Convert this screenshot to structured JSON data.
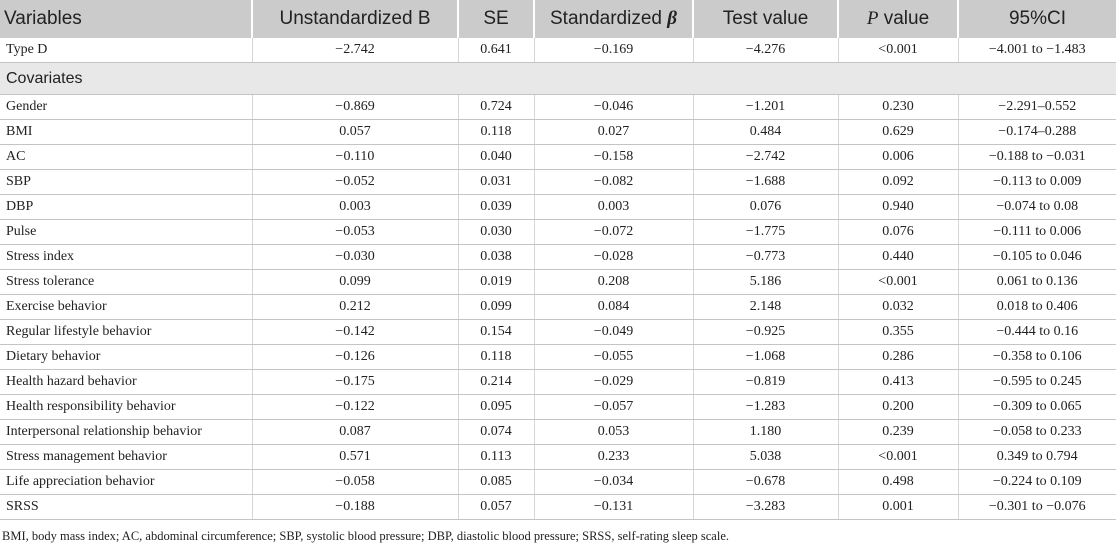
{
  "table": {
    "columns": [
      {
        "runs": [
          {
            "text": "Variables"
          }
        ]
      },
      {
        "runs": [
          {
            "text": "Unstandardized B"
          }
        ]
      },
      {
        "runs": [
          {
            "text": "SE"
          }
        ]
      },
      {
        "runs": [
          {
            "text": "Standardized "
          },
          {
            "text": "β",
            "italic": true,
            "bold": true
          }
        ]
      },
      {
        "runs": [
          {
            "text": "Test value"
          }
        ]
      },
      {
        "runs": [
          {
            "text": "P",
            "italic": true
          },
          {
            "text": " value"
          }
        ]
      },
      {
        "runs": [
          {
            "text": "95%CI"
          }
        ]
      }
    ],
    "rows": [
      [
        "Type D",
        "−2.742",
        "0.641",
        "−0.169",
        "−4.276",
        "<0.001",
        "−4.001 to −1.483"
      ]
    ],
    "section": "Covariates",
    "covariate_rows": [
      [
        "Gender",
        "−0.869",
        "0.724",
        "−0.046",
        "−1.201",
        "0.230",
        "−2.291–0.552"
      ],
      [
        "BMI",
        "0.057",
        "0.118",
        "0.027",
        "0.484",
        "0.629",
        "−0.174–0.288"
      ],
      [
        "AC",
        "−0.110",
        "0.040",
        "−0.158",
        "−2.742",
        "0.006",
        "−0.188 to −0.031"
      ],
      [
        "SBP",
        "−0.052",
        "0.031",
        "−0.082",
        "−1.688",
        "0.092",
        "−0.113 to 0.009"
      ],
      [
        "DBP",
        "0.003",
        "0.039",
        "0.003",
        "0.076",
        "0.940",
        "−0.074 to 0.08"
      ],
      [
        "Pulse",
        "−0.053",
        "0.030",
        "−0.072",
        "−1.775",
        "0.076",
        "−0.111 to 0.006"
      ],
      [
        "Stress index",
        "−0.030",
        "0.038",
        "−0.028",
        "−0.773",
        "0.440",
        "−0.105 to 0.046"
      ],
      [
        "Stress tolerance",
        "0.099",
        "0.019",
        "0.208",
        "5.186",
        "<0.001",
        "0.061 to 0.136"
      ],
      [
        "Exercise behavior",
        "0.212",
        "0.099",
        "0.084",
        "2.148",
        "0.032",
        "0.018 to 0.406"
      ],
      [
        "Regular lifestyle behavior",
        "−0.142",
        "0.154",
        "−0.049",
        "−0.925",
        "0.355",
        "−0.444 to 0.16"
      ],
      [
        "Dietary behavior",
        "−0.126",
        "0.118",
        "−0.055",
        "−1.068",
        "0.286",
        "−0.358 to 0.106"
      ],
      [
        "Health hazard behavior",
        "−0.175",
        "0.214",
        "−0.029",
        "−0.819",
        "0.413",
        "−0.595 to 0.245"
      ],
      [
        "Health responsibility behavior",
        "−0.122",
        "0.095",
        "−0.057",
        "−1.283",
        "0.200",
        "−0.309 to 0.065"
      ],
      [
        "Interpersonal relationship behavior",
        "0.087",
        "0.074",
        "0.053",
        "1.180",
        "0.239",
        "−0.058 to 0.233"
      ],
      [
        "Stress management behavior",
        "0.571",
        "0.113",
        "0.233",
        "5.038",
        "<0.001",
        "0.349 to 0.794"
      ],
      [
        "Life appreciation behavior",
        "−0.058",
        "0.085",
        "−0.034",
        "−0.678",
        "0.498",
        "−0.224 to 0.109"
      ],
      [
        "SRSS",
        "−0.188",
        "0.057",
        "−0.131",
        "−3.283",
        "0.001",
        "−0.301 to −0.076"
      ]
    ],
    "footnote": "BMI, body mass index; AC, abdominal circumference; SBP, systolic blood pressure; DBP, diastolic blood pressure; SRSS, self-rating sleep scale."
  }
}
